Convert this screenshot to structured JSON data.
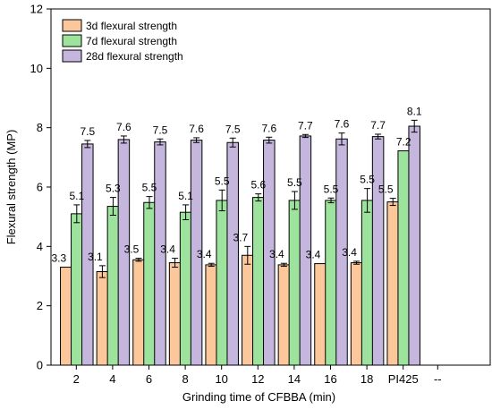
{
  "chart_data": {
    "type": "bar",
    "xlabel": "Grinding time of CFBBA (min)",
    "ylabel": "Flexural strength (MP)",
    "ylim": [
      0,
      12
    ],
    "yticks": [
      0,
      2,
      4,
      6,
      8,
      10,
      12
    ],
    "categories": [
      "2",
      "4",
      "6",
      "8",
      "10",
      "12",
      "14",
      "16",
      "18",
      "PI425"
    ],
    "trailing_tick_label": "--",
    "grid": false,
    "legend_position": "top-left",
    "series": [
      {
        "name": "3d flexural strength",
        "color": "#FCC89B",
        "values": [
          3.3,
          3.15,
          3.55,
          3.45,
          3.38,
          3.7,
          3.38,
          3.42,
          3.45,
          5.5
        ],
        "errors": [
          0.0,
          0.2,
          0.05,
          0.15,
          0.05,
          0.3,
          0.05,
          0.0,
          0.05,
          0.12
        ],
        "labels": [
          "3.3",
          "3.1",
          "3.5",
          "3.4",
          "3.4",
          "3.7",
          "3.4",
          "3.4",
          "3.4",
          "5.5"
        ]
      },
      {
        "name": "7d flexural strength",
        "color": "#9DE39D",
        "values": [
          5.1,
          5.35,
          5.48,
          5.15,
          5.55,
          5.65,
          5.55,
          5.55,
          5.55,
          7.22
        ],
        "errors": [
          0.3,
          0.3,
          0.2,
          0.25,
          0.35,
          0.12,
          0.3,
          0.08,
          0.4,
          0.0
        ],
        "labels": [
          "5.1",
          "5.3",
          "5.5",
          "5.1",
          "5.5",
          "5.6",
          "5.5",
          "5.5",
          "5.5",
          "7.2"
        ]
      },
      {
        "name": "28d flexural strength",
        "color": "#C5B6DE",
        "values": [
          7.45,
          7.6,
          7.52,
          7.58,
          7.5,
          7.58,
          7.72,
          7.62,
          7.7,
          8.05
        ],
        "errors": [
          0.12,
          0.12,
          0.1,
          0.08,
          0.15,
          0.1,
          0.05,
          0.2,
          0.08,
          0.2
        ],
        "labels": [
          "7.5",
          "7.6",
          "7.5",
          "7.6",
          "7.5",
          "7.6",
          "7.7",
          "7.6",
          "7.7",
          "8.1"
        ]
      }
    ]
  }
}
